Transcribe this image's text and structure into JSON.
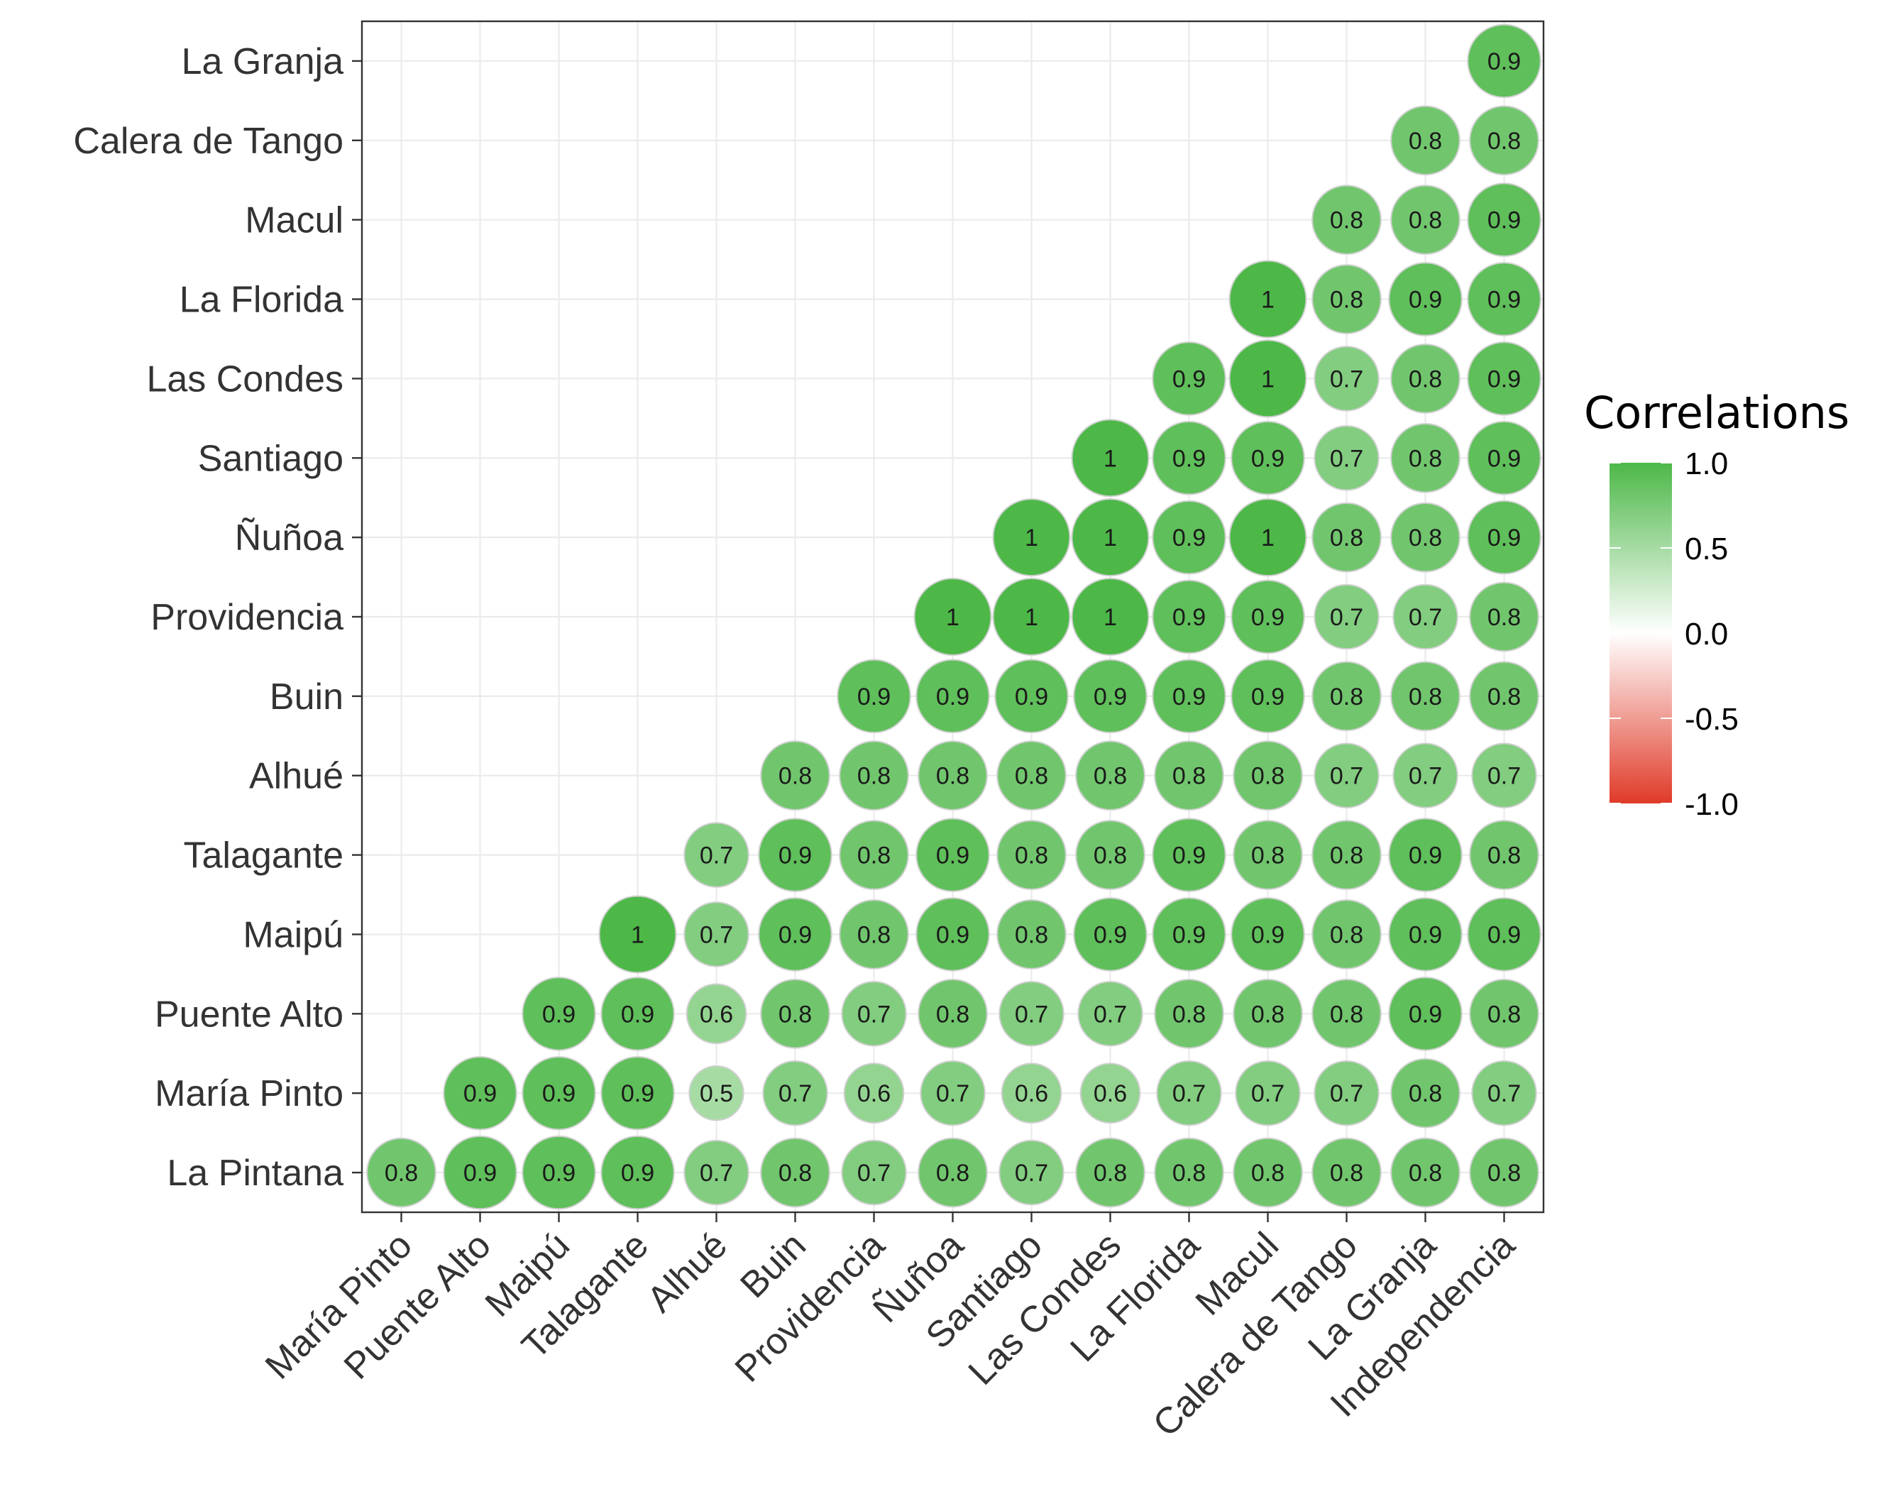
{
  "chart_data": {
    "type": "heatmap",
    "style": "circle correlation matrix (lower triangle)",
    "x_categories": [
      "María Pinto",
      "Puente Alto",
      "Maipú",
      "Talagante",
      "Alhué",
      "Buin",
      "Providencia",
      "Ñuñoa",
      "Santiago",
      "Las Condes",
      "La Florida",
      "Macul",
      "Calera de Tango",
      "La Granja",
      "Independencia"
    ],
    "y_categories": [
      "La Pintana",
      "María Pinto",
      "Puente Alto",
      "Maipú",
      "Talagante",
      "Alhué",
      "Buin",
      "Providencia",
      "Ñuñoa",
      "Santiago",
      "Las Condes",
      "La Florida",
      "Macul",
      "Calera de Tango",
      "La Granja"
    ],
    "values": [
      [
        0.8,
        0.9,
        0.9,
        0.9,
        0.7,
        0.8,
        0.7,
        0.8,
        0.7,
        0.8,
        0.8,
        0.8,
        0.8,
        0.8,
        0.8
      ],
      [
        null,
        0.9,
        0.9,
        0.9,
        0.5,
        0.7,
        0.6,
        0.7,
        0.6,
        0.6,
        0.7,
        0.7,
        0.7,
        0.8,
        0.7
      ],
      [
        null,
        null,
        0.9,
        0.9,
        0.6,
        0.8,
        0.7,
        0.8,
        0.7,
        0.7,
        0.8,
        0.8,
        0.8,
        0.9,
        0.8
      ],
      [
        null,
        null,
        null,
        1,
        0.7,
        0.9,
        0.8,
        0.9,
        0.8,
        0.9,
        0.9,
        0.9,
        0.8,
        0.9,
        0.9
      ],
      [
        null,
        null,
        null,
        null,
        0.7,
        0.9,
        0.8,
        0.9,
        0.8,
        0.8,
        0.9,
        0.8,
        0.8,
        0.9,
        0.8
      ],
      [
        null,
        null,
        null,
        null,
        null,
        0.8,
        0.8,
        0.8,
        0.8,
        0.8,
        0.8,
        0.8,
        0.7,
        0.7,
        0.7
      ],
      [
        null,
        null,
        null,
        null,
        null,
        null,
        0.9,
        0.9,
        0.9,
        0.9,
        0.9,
        0.9,
        0.8,
        0.8,
        0.8
      ],
      [
        null,
        null,
        null,
        null,
        null,
        null,
        null,
        1,
        1,
        1,
        0.9,
        0.9,
        0.7,
        0.7,
        0.8
      ],
      [
        null,
        null,
        null,
        null,
        null,
        null,
        null,
        null,
        1,
        1,
        0.9,
        1,
        0.8,
        0.8,
        0.9
      ],
      [
        null,
        null,
        null,
        null,
        null,
        null,
        null,
        null,
        null,
        1,
        0.9,
        0.9,
        0.7,
        0.8,
        0.9
      ],
      [
        null,
        null,
        null,
        null,
        null,
        null,
        null,
        null,
        null,
        null,
        0.9,
        1,
        0.7,
        0.8,
        0.9
      ],
      [
        null,
        null,
        null,
        null,
        null,
        null,
        null,
        null,
        null,
        null,
        null,
        1,
        0.8,
        0.9,
        0.9
      ],
      [
        null,
        null,
        null,
        null,
        null,
        null,
        null,
        null,
        null,
        null,
        null,
        null,
        0.8,
        0.8,
        0.9
      ],
      [
        null,
        null,
        null,
        null,
        null,
        null,
        null,
        null,
        null,
        null,
        null,
        null,
        null,
        0.8,
        0.8
      ],
      [
        null,
        null,
        null,
        null,
        null,
        null,
        null,
        null,
        null,
        null,
        null,
        null,
        null,
        null,
        0.9
      ]
    ],
    "legend": {
      "title": "Correlations",
      "ticks": [
        1.0,
        0.5,
        0.0,
        -0.5,
        -1.0
      ],
      "tick_labels": [
        "1.0",
        "0.5",
        "0.0",
        "-0.5",
        "-1.0"
      ],
      "colors": {
        "high": "#4db848",
        "mid": "#ffffff",
        "low": "#e03a28"
      },
      "placement": "right"
    },
    "grid": true,
    "x_tick_rotation": "45",
    "title": "",
    "xlabel": "",
    "ylabel": ""
  }
}
